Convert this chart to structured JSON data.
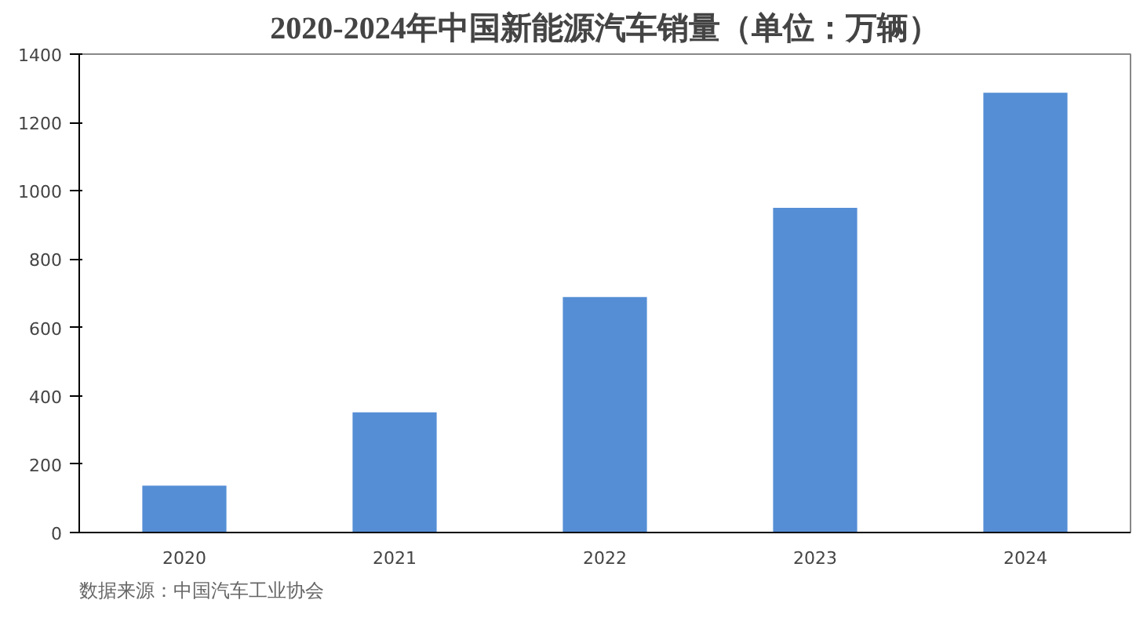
{
  "chart_data": {
    "type": "bar",
    "title": "2020-2024年中国新能源汽车销量（单位：万辆）",
    "categories": [
      "2020",
      "2021",
      "2022",
      "2023",
      "2024"
    ],
    "values": [
      137,
      352,
      689,
      950,
      1287
    ],
    "color": "#558ed5",
    "ylim": [
      0,
      1400
    ],
    "yticks": [
      0,
      200,
      400,
      600,
      800,
      1000,
      1200,
      1400
    ],
    "grid": false,
    "annotations": [
      "数据来源：中国汽车工业协会"
    ]
  }
}
